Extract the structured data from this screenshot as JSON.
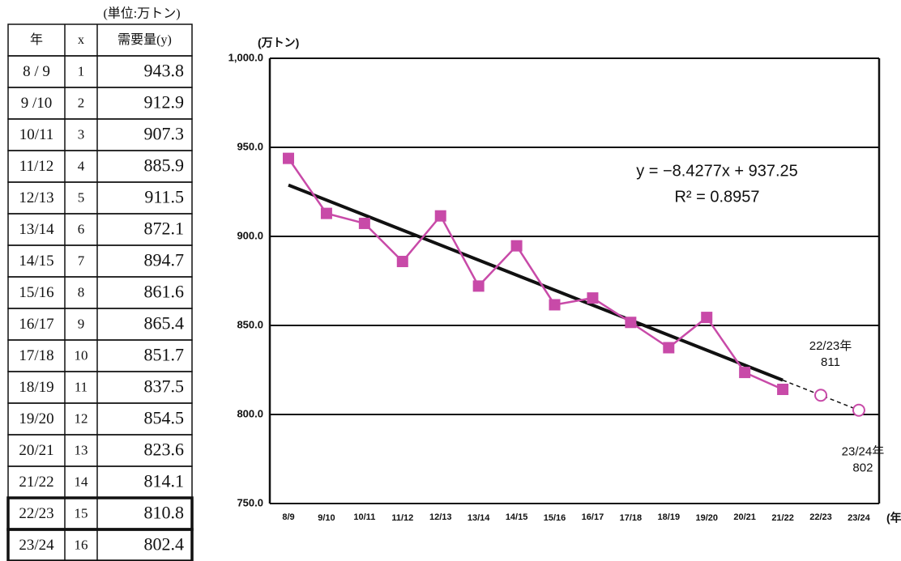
{
  "table": {
    "unit": "(単位:万トン)",
    "header": [
      "年",
      "x",
      "需要量(y)"
    ],
    "rows": [
      [
        "8 / 9",
        "1",
        "943.8"
      ],
      [
        "9 /10",
        "2",
        "912.9"
      ],
      [
        "10/11",
        "3",
        "907.3"
      ],
      [
        "11/12",
        "4",
        "885.9"
      ],
      [
        "12/13",
        "5",
        "911.5"
      ],
      [
        "13/14",
        "6",
        "872.1"
      ],
      [
        "14/15",
        "7",
        "894.7"
      ],
      [
        "15/16",
        "8",
        "861.6"
      ],
      [
        "16/17",
        "9",
        "865.4"
      ],
      [
        "17/18",
        "10",
        "851.7"
      ],
      [
        "18/19",
        "11",
        "837.5"
      ],
      [
        "19/20",
        "12",
        "854.5"
      ],
      [
        "20/21",
        "13",
        "823.6"
      ],
      [
        "21/22",
        "14",
        "814.1"
      ],
      [
        "22/23",
        "15",
        "810.8"
      ],
      [
        "23/24",
        "16",
        "802.4"
      ]
    ]
  },
  "chart_data": {
    "type": "line",
    "y_label": "(万トン)",
    "x_label": "(年)",
    "categories": [
      "8/9",
      "9/10",
      "10/11",
      "11/12",
      "12/13",
      "13/14",
      "14/15",
      "15/16",
      "16/17",
      "17/18",
      "18/19",
      "19/20",
      "20/21",
      "21/22",
      "22/23",
      "23/24"
    ],
    "values": [
      943.8,
      912.9,
      907.3,
      885.9,
      911.5,
      872.1,
      894.7,
      861.6,
      865.4,
      851.7,
      837.5,
      854.5,
      823.6,
      814.1,
      null,
      null
    ],
    "forecast_values": [
      null,
      null,
      null,
      null,
      null,
      null,
      null,
      null,
      null,
      null,
      null,
      null,
      null,
      null,
      810.8,
      802.4
    ],
    "forecast_year_labels": [
      null,
      null,
      null,
      null,
      null,
      null,
      null,
      null,
      null,
      null,
      null,
      null,
      null,
      null,
      "22/23年",
      "23/24年"
    ],
    "forecast_value_labels": [
      null,
      null,
      null,
      null,
      null,
      null,
      null,
      null,
      null,
      null,
      null,
      null,
      null,
      null,
      "811",
      "802"
    ],
    "color": "#c84aa8",
    "trendline": {
      "label": "y = −8.4277x + 937.25",
      "r2_label": "R² = 0.8957",
      "slope": -8.4277,
      "intercept": 937.25,
      "color": "#111111"
    },
    "ylim": [
      750,
      1000
    ],
    "yticks": [
      {
        "value": 750,
        "label": "750.0"
      },
      {
        "value": 800,
        "label": "800.0"
      },
      {
        "value": 850,
        "label": "850.0"
      },
      {
        "value": 900,
        "label": "900.0"
      },
      {
        "value": 950,
        "label": "950.0"
      },
      {
        "value": 1000,
        "label": "1,000.0"
      }
    ],
    "grid": true
  }
}
